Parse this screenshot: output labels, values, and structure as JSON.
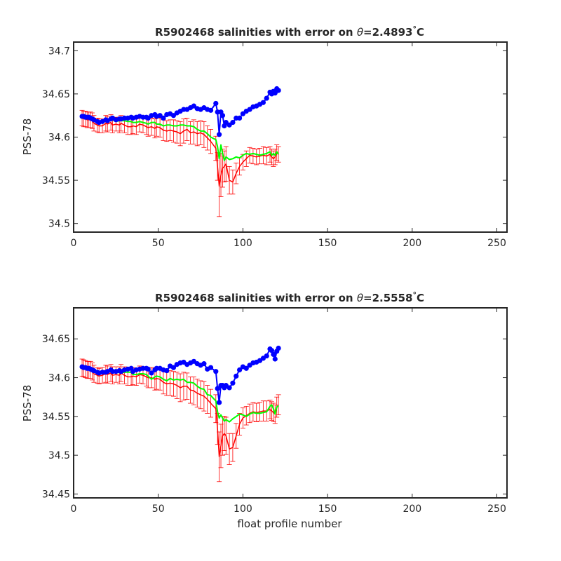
{
  "chart_data": [
    {
      "type": "line",
      "title": {
        "prefix": "R5902468 salinities with error on ",
        "theta": "θ",
        "value": "=2.4893",
        "degree": "°",
        "unit": "C"
      },
      "ylabel": "PSS-78",
      "xlabel": "",
      "xlim": [
        0,
        256
      ],
      "ylim": [
        34.49,
        34.71
      ],
      "xticks": [
        0,
        50,
        100,
        150,
        200,
        250
      ],
      "yticks": [
        34.5,
        34.55,
        34.6,
        34.65,
        34.7
      ],
      "ytick_labels": [
        "34.5",
        "34.55",
        "34.6",
        "34.65",
        "34.7"
      ],
      "grid": false,
      "legend": "none",
      "colors": {
        "measured": "#0000ff",
        "mapped": "#ff0000",
        "calibrated": "#00ff00",
        "errorbar": "#ff0000"
      },
      "series": [
        {
          "role": "measured",
          "x": [
            5,
            6,
            7,
            8,
            9,
            10,
            11,
            12,
            14,
            15,
            17,
            19,
            20,
            22,
            23,
            25,
            27,
            28,
            30,
            32,
            34,
            35,
            37,
            39,
            41,
            43,
            44,
            46,
            48,
            49,
            51,
            53,
            55,
            57,
            59,
            61,
            63,
            65,
            67,
            69,
            71,
            73,
            75,
            77,
            79,
            81,
            84,
            85,
            86,
            87,
            88,
            89,
            90,
            92,
            94,
            96,
            98,
            100,
            102,
            104,
            106,
            108,
            110,
            112,
            114,
            116,
            117,
            118,
            119,
            120,
            121
          ],
          "y": [
            34.624,
            34.624,
            34.623,
            34.623,
            34.623,
            34.622,
            34.621,
            34.62,
            34.618,
            34.617,
            34.618,
            34.62,
            34.619,
            34.621,
            34.622,
            34.62,
            34.621,
            34.621,
            34.622,
            34.622,
            34.623,
            34.622,
            34.623,
            34.624,
            34.623,
            34.623,
            34.622,
            34.625,
            34.626,
            34.624,
            34.625,
            34.622,
            34.626,
            34.627,
            34.625,
            34.628,
            34.63,
            34.632,
            34.632,
            34.634,
            34.636,
            34.633,
            34.632,
            34.634,
            34.632,
            34.631,
            34.639,
            34.629,
            34.603,
            34.629,
            34.625,
            34.613,
            34.617,
            34.614,
            34.617,
            34.622,
            34.622,
            34.627,
            34.63,
            34.632,
            34.635,
            34.636,
            34.638,
            34.64,
            34.645,
            34.652,
            34.65,
            34.653,
            34.651,
            34.656,
            34.654
          ]
        },
        {
          "role": "mapped",
          "x": [
            5,
            6,
            7,
            8,
            9,
            10,
            11,
            12,
            14,
            15,
            17,
            19,
            20,
            22,
            23,
            25,
            27,
            28,
            30,
            32,
            34,
            35,
            37,
            39,
            41,
            43,
            44,
            46,
            48,
            49,
            51,
            53,
            55,
            57,
            59,
            61,
            63,
            65,
            67,
            69,
            71,
            73,
            75,
            77,
            79,
            81,
            84,
            85,
            86,
            87,
            88,
            89,
            90,
            92,
            94,
            96,
            98,
            100,
            102,
            104,
            106,
            108,
            110,
            112,
            114,
            116,
            117,
            118,
            119,
            120,
            121
          ],
          "y": [
            34.622,
            34.621,
            34.621,
            34.62,
            34.62,
            34.62,
            34.619,
            34.616,
            34.614,
            34.613,
            34.613,
            34.616,
            34.615,
            34.617,
            34.614,
            34.615,
            34.614,
            34.616,
            34.614,
            34.612,
            34.612,
            34.613,
            34.612,
            34.615,
            34.614,
            34.612,
            34.611,
            34.612,
            34.61,
            34.612,
            34.611,
            34.608,
            34.607,
            34.608,
            34.607,
            34.606,
            34.604,
            34.607,
            34.609,
            34.605,
            34.606,
            34.604,
            34.605,
            34.603,
            34.599,
            34.595,
            34.587,
            34.566,
            34.543,
            34.556,
            34.564,
            34.566,
            34.569,
            34.55,
            34.548,
            34.558,
            34.566,
            34.571,
            34.575,
            34.579,
            34.578,
            34.577,
            34.578,
            34.579,
            34.578,
            34.58,
            34.577,
            34.575,
            34.577,
            34.582,
            34.58
          ]
        },
        {
          "role": "calibrated",
          "x": [
            5,
            6,
            7,
            8,
            9,
            10,
            11,
            12,
            14,
            15,
            17,
            19,
            20,
            22,
            23,
            25,
            27,
            28,
            30,
            32,
            34,
            35,
            37,
            39,
            41,
            43,
            44,
            46,
            48,
            49,
            51,
            53,
            55,
            57,
            59,
            61,
            63,
            65,
            67,
            69,
            71,
            73,
            75,
            77,
            79,
            81,
            84,
            85,
            86,
            87,
            88,
            89,
            90,
            92,
            94,
            96,
            98,
            100,
            102,
            104,
            106,
            108,
            110,
            112,
            114,
            116,
            117,
            118,
            119,
            120,
            121
          ],
          "y": [
            34.624,
            34.624,
            34.623,
            34.623,
            34.623,
            34.622,
            34.621,
            34.62,
            34.618,
            34.617,
            34.618,
            34.62,
            34.619,
            34.621,
            34.62,
            34.618,
            34.619,
            34.619,
            34.619,
            34.618,
            34.618,
            34.617,
            34.617,
            34.618,
            34.617,
            34.616,
            34.615,
            34.617,
            34.617,
            34.615,
            34.615,
            34.613,
            34.614,
            34.614,
            34.613,
            34.613,
            34.614,
            34.614,
            34.613,
            34.613,
            34.612,
            34.609,
            34.607,
            34.607,
            34.604,
            34.6,
            34.597,
            34.589,
            34.575,
            34.591,
            34.581,
            34.573,
            34.577,
            34.574,
            34.575,
            34.577,
            34.576,
            34.579,
            34.581,
            34.58,
            34.581,
            34.58,
            34.579,
            34.58,
            34.581,
            34.583,
            34.579,
            34.581,
            34.579,
            34.583,
            34.58
          ]
        }
      ],
      "errors": [
        0.009,
        0.009,
        0.009,
        0.009,
        0.009,
        0.009,
        0.009,
        0.009,
        0.008,
        0.008,
        0.008,
        0.009,
        0.009,
        0.009,
        0.009,
        0.008,
        0.009,
        0.009,
        0.009,
        0.009,
        0.009,
        0.009,
        0.009,
        0.009,
        0.009,
        0.009,
        0.01,
        0.01,
        0.011,
        0.011,
        0.011,
        0.012,
        0.012,
        0.012,
        0.013,
        0.013,
        0.014,
        0.014,
        0.013,
        0.013,
        0.014,
        0.014,
        0.014,
        0.015,
        0.014,
        0.014,
        0.014,
        0.016,
        0.035,
        0.025,
        0.022,
        0.018,
        0.02,
        0.016,
        0.014,
        0.012,
        0.01,
        0.009,
        0.009,
        0.009,
        0.009,
        0.009,
        0.009,
        0.01,
        0.01,
        0.009,
        0.009,
        0.009,
        0.009,
        0.009,
        0.009
      ]
    },
    {
      "type": "line",
      "title": {
        "prefix": "R5902468 salinities with error on ",
        "theta": "θ",
        "value": "=2.5558",
        "degree": "°",
        "unit": "C"
      },
      "ylabel": "PSS-78",
      "xlabel": "float profile number",
      "xlim": [
        0,
        256
      ],
      "ylim": [
        34.445,
        34.69
      ],
      "xticks": [
        0,
        50,
        100,
        150,
        200,
        250
      ],
      "yticks": [
        34.45,
        34.5,
        34.55,
        34.6,
        34.65
      ],
      "ytick_labels": [
        "34.45",
        "34.5",
        "34.55",
        "34.6",
        "34.65"
      ],
      "grid": false,
      "legend": "none",
      "colors": {
        "measured": "#0000ff",
        "mapped": "#ff0000",
        "calibrated": "#00ff00",
        "errorbar": "#ff0000"
      },
      "series": [
        {
          "role": "measured",
          "x": [
            5,
            6,
            7,
            8,
            9,
            10,
            11,
            12,
            14,
            15,
            17,
            19,
            20,
            22,
            23,
            25,
            27,
            28,
            30,
            32,
            34,
            35,
            37,
            39,
            41,
            43,
            44,
            46,
            48,
            49,
            51,
            53,
            55,
            57,
            59,
            61,
            63,
            65,
            67,
            69,
            71,
            73,
            75,
            77,
            79,
            81,
            84,
            85,
            86,
            87,
            88,
            89,
            90,
            92,
            94,
            96,
            98,
            100,
            102,
            104,
            106,
            108,
            110,
            112,
            114,
            116,
            117,
            118,
            119,
            120,
            121
          ],
          "y": [
            34.614,
            34.613,
            34.613,
            34.612,
            34.612,
            34.611,
            34.61,
            34.609,
            34.607,
            34.606,
            34.607,
            34.607,
            34.608,
            34.61,
            34.608,
            34.608,
            34.609,
            34.608,
            34.61,
            34.611,
            34.612,
            34.608,
            34.61,
            34.611,
            34.612,
            34.612,
            34.611,
            34.606,
            34.61,
            34.612,
            34.612,
            34.61,
            34.609,
            34.615,
            34.613,
            34.617,
            34.619,
            34.62,
            34.617,
            34.619,
            34.621,
            34.618,
            34.616,
            34.618,
            34.611,
            34.613,
            34.608,
            34.586,
            34.568,
            34.59,
            34.59,
            34.587,
            34.59,
            34.587,
            34.593,
            34.602,
            34.61,
            34.614,
            34.612,
            34.616,
            34.619,
            34.62,
            34.622,
            34.625,
            34.628,
            34.637,
            34.635,
            34.63,
            34.624,
            34.634,
            34.638
          ]
        },
        {
          "role": "mapped",
          "x": [
            5,
            6,
            7,
            8,
            9,
            10,
            11,
            12,
            14,
            15,
            17,
            19,
            20,
            22,
            23,
            25,
            27,
            28,
            30,
            32,
            34,
            35,
            37,
            39,
            41,
            43,
            44,
            46,
            48,
            49,
            51,
            53,
            55,
            57,
            59,
            61,
            63,
            65,
            67,
            69,
            71,
            73,
            75,
            77,
            79,
            81,
            84,
            85,
            86,
            87,
            88,
            89,
            90,
            92,
            94,
            96,
            98,
            100,
            102,
            104,
            106,
            108,
            110,
            112,
            114,
            116,
            117,
            118,
            119,
            120,
            121
          ],
          "y": [
            34.613,
            34.612,
            34.611,
            34.61,
            34.61,
            34.61,
            34.608,
            34.605,
            34.603,
            34.602,
            34.603,
            34.605,
            34.604,
            34.606,
            34.603,
            34.604,
            34.603,
            34.606,
            34.603,
            34.601,
            34.601,
            34.602,
            34.601,
            34.604,
            34.603,
            34.601,
            34.6,
            34.6,
            34.598,
            34.599,
            34.598,
            34.594,
            34.592,
            34.593,
            34.592,
            34.59,
            34.587,
            34.589,
            34.589,
            34.584,
            34.583,
            34.58,
            34.578,
            34.576,
            34.572,
            34.567,
            34.56,
            34.534,
            34.498,
            34.512,
            34.525,
            34.528,
            34.525,
            34.508,
            34.51,
            34.525,
            34.54,
            34.548,
            34.551,
            34.554,
            34.556,
            34.555,
            34.556,
            34.557,
            34.557,
            34.559,
            34.557,
            34.555,
            34.553,
            34.562,
            34.565
          ]
        },
        {
          "role": "calibrated",
          "x": [
            5,
            6,
            7,
            8,
            9,
            10,
            11,
            12,
            14,
            15,
            17,
            19,
            20,
            22,
            23,
            25,
            27,
            28,
            30,
            32,
            34,
            35,
            37,
            39,
            41,
            43,
            44,
            46,
            48,
            49,
            51,
            53,
            55,
            57,
            59,
            61,
            63,
            65,
            67,
            69,
            71,
            73,
            75,
            77,
            79,
            81,
            84,
            85,
            86,
            87,
            88,
            89,
            90,
            92,
            94,
            96,
            98,
            100,
            102,
            104,
            106,
            108,
            110,
            112,
            114,
            116,
            117,
            118,
            119,
            120,
            121
          ],
          "y": [
            34.614,
            34.613,
            34.613,
            34.612,
            34.612,
            34.611,
            34.61,
            34.609,
            34.607,
            34.606,
            34.607,
            34.607,
            34.608,
            34.61,
            34.607,
            34.606,
            34.607,
            34.606,
            34.607,
            34.607,
            34.607,
            34.604,
            34.604,
            34.605,
            34.605,
            34.604,
            34.602,
            34.598,
            34.601,
            34.602,
            34.601,
            34.598,
            34.596,
            34.599,
            34.597,
            34.598,
            34.597,
            34.598,
            34.594,
            34.594,
            34.593,
            34.589,
            34.586,
            34.585,
            34.578,
            34.577,
            34.57,
            34.556,
            34.548,
            34.552,
            34.548,
            34.544,
            34.546,
            34.543,
            34.547,
            34.55,
            34.553,
            34.552,
            34.55,
            34.553,
            34.555,
            34.554,
            34.554,
            34.555,
            34.556,
            34.563,
            34.565,
            34.56,
            34.553,
            34.562,
            34.564
          ]
        }
      ],
      "errors": [
        0.011,
        0.011,
        0.011,
        0.011,
        0.011,
        0.011,
        0.011,
        0.011,
        0.01,
        0.01,
        0.01,
        0.011,
        0.011,
        0.011,
        0.011,
        0.01,
        0.011,
        0.011,
        0.011,
        0.011,
        0.011,
        0.011,
        0.011,
        0.011,
        0.011,
        0.012,
        0.013,
        0.013,
        0.014,
        0.014,
        0.014,
        0.015,
        0.015,
        0.016,
        0.016,
        0.017,
        0.018,
        0.018,
        0.017,
        0.017,
        0.018,
        0.018,
        0.018,
        0.019,
        0.018,
        0.018,
        0.018,
        0.02,
        0.032,
        0.028,
        0.025,
        0.022,
        0.024,
        0.02,
        0.018,
        0.016,
        0.014,
        0.013,
        0.012,
        0.012,
        0.012,
        0.012,
        0.012,
        0.013,
        0.013,
        0.012,
        0.012,
        0.012,
        0.012,
        0.013,
        0.013
      ]
    }
  ]
}
